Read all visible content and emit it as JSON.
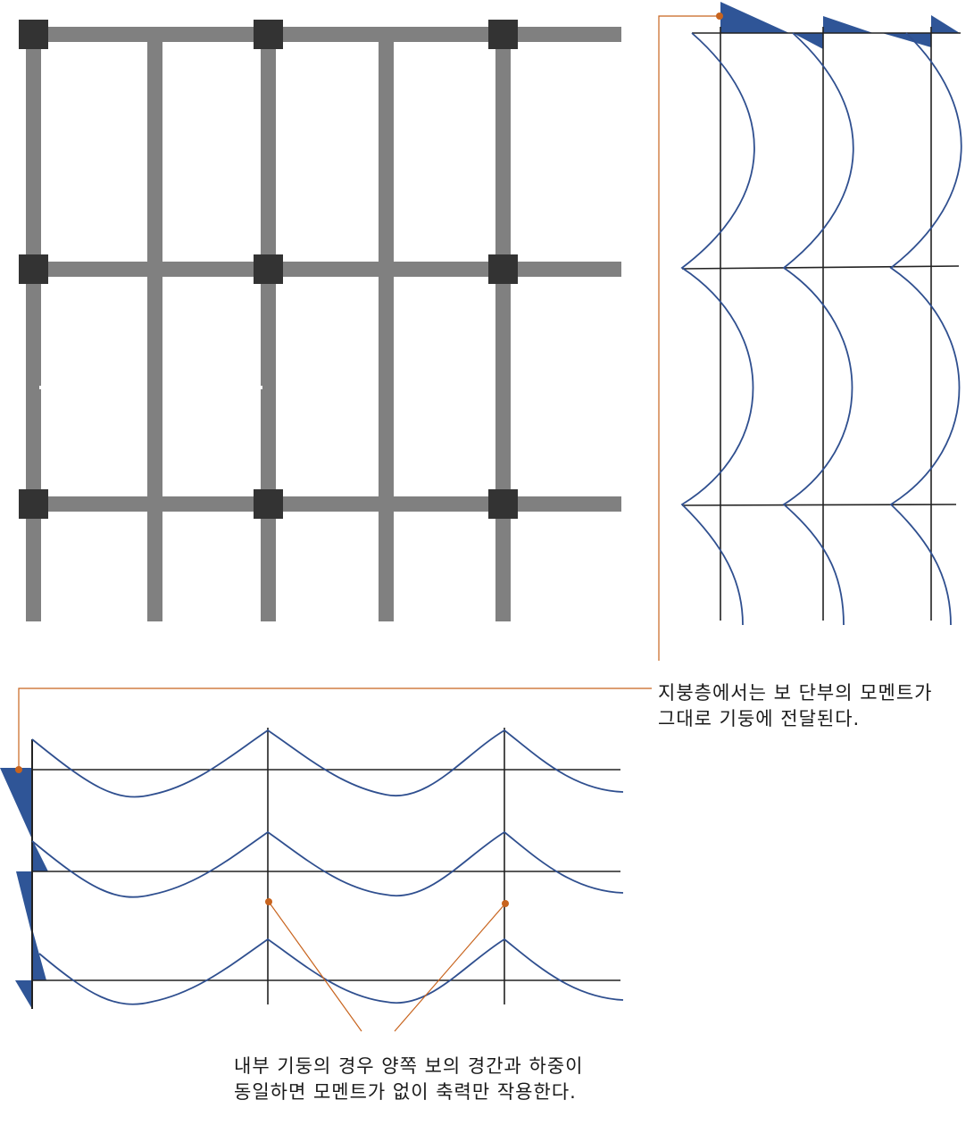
{
  "colors": {
    "beam_gray": "#808080",
    "column_node": "#333333",
    "moment_line": "#2f4f8f",
    "moment_fill": "#2f5597",
    "frame_line": "#222222",
    "leader_line": "#c8641e"
  },
  "annotations": {
    "roof_note": {
      "line1": "지붕층에서는 보 단부의 모멘트가",
      "line2": "그대로 기둥에 전달된다."
    },
    "interior_note": {
      "line1": "내부 기둥의 경우 양쪽 보의 경간과 하중이",
      "line2": "동일하면 모멘트가 없이 축력만 작용한다."
    }
  }
}
